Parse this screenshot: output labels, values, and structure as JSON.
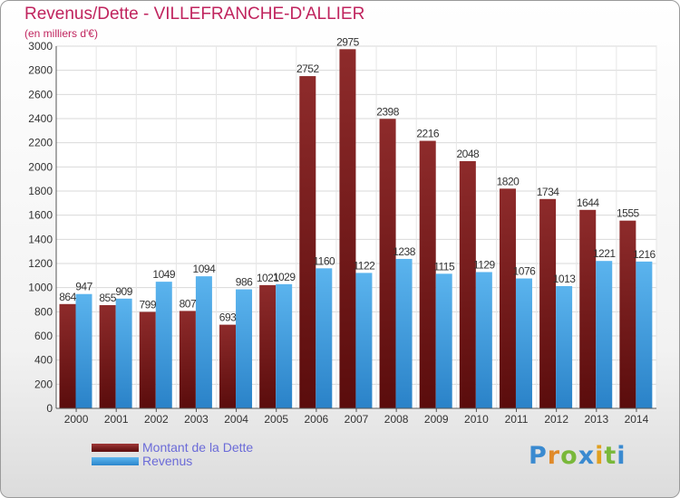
{
  "chart_data": {
    "type": "bar",
    "title": "Revenus/Dette - VILLEFRANCHE-D'ALLIER",
    "subtitle": "(en milliers d'€)",
    "categories": [
      "2000",
      "2001",
      "2002",
      "2003",
      "2004",
      "2005",
      "2006",
      "2007",
      "2008",
      "2009",
      "2010",
      "2011",
      "2012",
      "2013",
      "2014"
    ],
    "series": [
      {
        "name": "Montant de la Dette",
        "values": [
          864,
          855,
          799,
          807,
          693,
          1021,
          2752,
          2975,
          2398,
          2216,
          2048,
          1820,
          1734,
          1644,
          1555
        ]
      },
      {
        "name": "Revenus",
        "values": [
          947,
          909,
          1049,
          1094,
          986,
          1029,
          1160,
          1122,
          1238,
          1115,
          1129,
          1076,
          1013,
          1221,
          1216
        ]
      }
    ],
    "yticks": [
      0,
      200,
      400,
      600,
      800,
      1000,
      1200,
      1400,
      1600,
      1800,
      2000,
      2200,
      2400,
      2600,
      2800,
      3000
    ],
    "ylim": [
      0,
      3000
    ],
    "grid": true,
    "legend": "bottom-left",
    "colors": {
      "dette": "#7a1c1c",
      "revenus": "#4aa8e8"
    }
  },
  "logo": {
    "letters": [
      "P",
      "r",
      "o",
      "x",
      "i",
      "t",
      "i"
    ]
  }
}
